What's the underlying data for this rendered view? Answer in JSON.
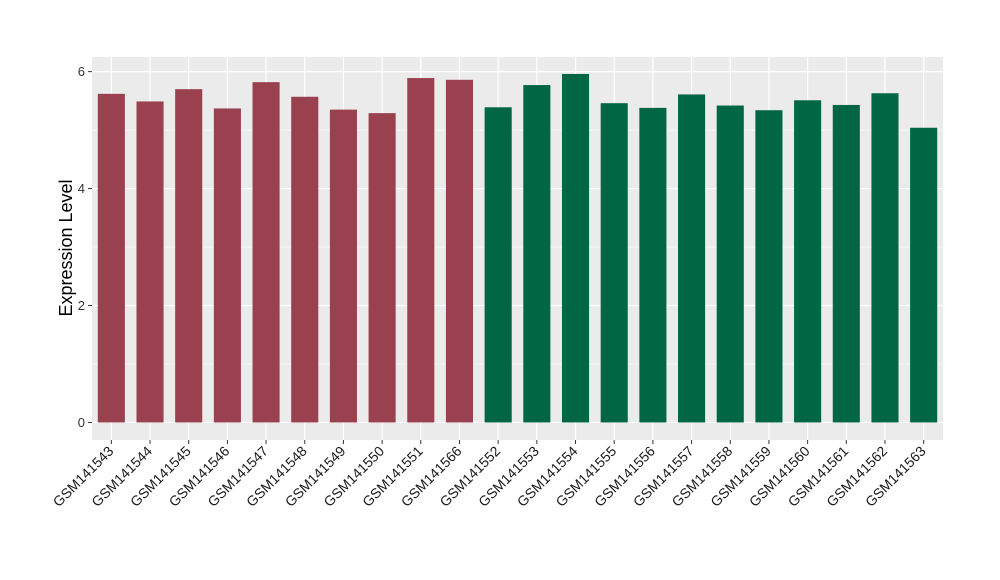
{
  "chart_data": {
    "type": "bar",
    "title": "",
    "xlabel": "",
    "ylabel": "Expression Level",
    "ylim": [
      -0.3,
      6.25
    ],
    "yticks": [
      0,
      2,
      4,
      6
    ],
    "grid": true,
    "categories": [
      "GSM141543",
      "GSM141544",
      "GSM141545",
      "GSM141546",
      "GSM141547",
      "GSM141548",
      "GSM141549",
      "GSM141550",
      "GSM141551",
      "GSM141566",
      "GSM141552",
      "GSM141553",
      "GSM141554",
      "GSM141555",
      "GSM141556",
      "GSM141557",
      "GSM141558",
      "GSM141559",
      "GSM141560",
      "GSM141561",
      "GSM141562",
      "GSM141563"
    ],
    "values": [
      5.62,
      5.49,
      5.7,
      5.37,
      5.82,
      5.57,
      5.35,
      5.29,
      5.89,
      5.86,
      5.39,
      5.77,
      5.96,
      5.46,
      5.38,
      5.61,
      5.42,
      5.34,
      5.51,
      5.43,
      5.63,
      5.04
    ],
    "bar_colors": [
      "#99414F",
      "#99414F",
      "#99414F",
      "#99414F",
      "#99414F",
      "#99414F",
      "#99414F",
      "#99414F",
      "#99414F",
      "#99414F",
      "#006644",
      "#006644",
      "#006644",
      "#006644",
      "#006644",
      "#006644",
      "#006644",
      "#006644",
      "#006644",
      "#006644",
      "#006644",
      "#006644"
    ],
    "panel_background": "#EBEBEB",
    "grid_color": "#FFFFFF"
  }
}
